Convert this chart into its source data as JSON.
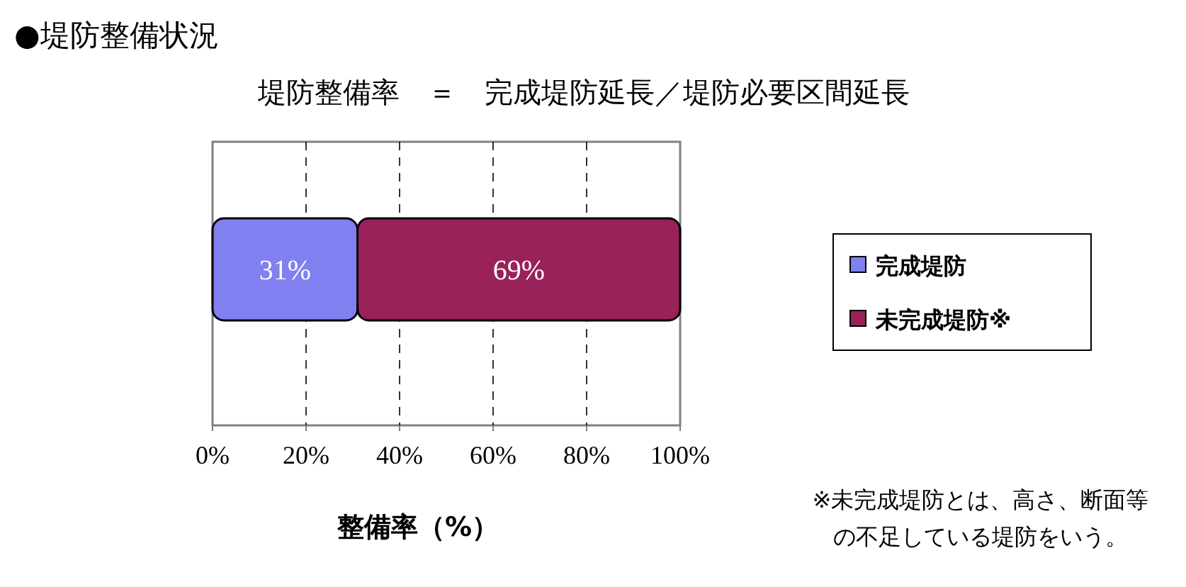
{
  "chart_data": {
    "type": "bar",
    "orientation": "horizontal",
    "stacked": true,
    "title": "●堤防整備状況",
    "subtitle": "堤防整備率　＝　完成堤防延長／堤防必要区間延長",
    "xlabel": "整備率（%）",
    "categories": [
      null
    ],
    "series": [
      {
        "name": "完成堤防",
        "color": "#8080f0",
        "values": [
          31
        ],
        "value_labels": [
          "31%"
        ]
      },
      {
        "name": "未完成堤防※",
        "color": "#99225a",
        "values": [
          69
        ],
        "value_labels": [
          "69%"
        ]
      }
    ],
    "xlim": [
      0,
      100
    ],
    "xticks": [
      {
        "value": 0,
        "label": "0%"
      },
      {
        "value": 20,
        "label": "20%"
      },
      {
        "value": 40,
        "label": "40%"
      },
      {
        "value": 60,
        "label": "60%"
      },
      {
        "value": 80,
        "label": "80%"
      },
      {
        "value": 100,
        "label": "100%"
      }
    ],
    "grid": "x",
    "legend": "right",
    "annotations": [
      "※未完成堤防とは、高さ、断面等の不足している堤防をいう。"
    ]
  }
}
